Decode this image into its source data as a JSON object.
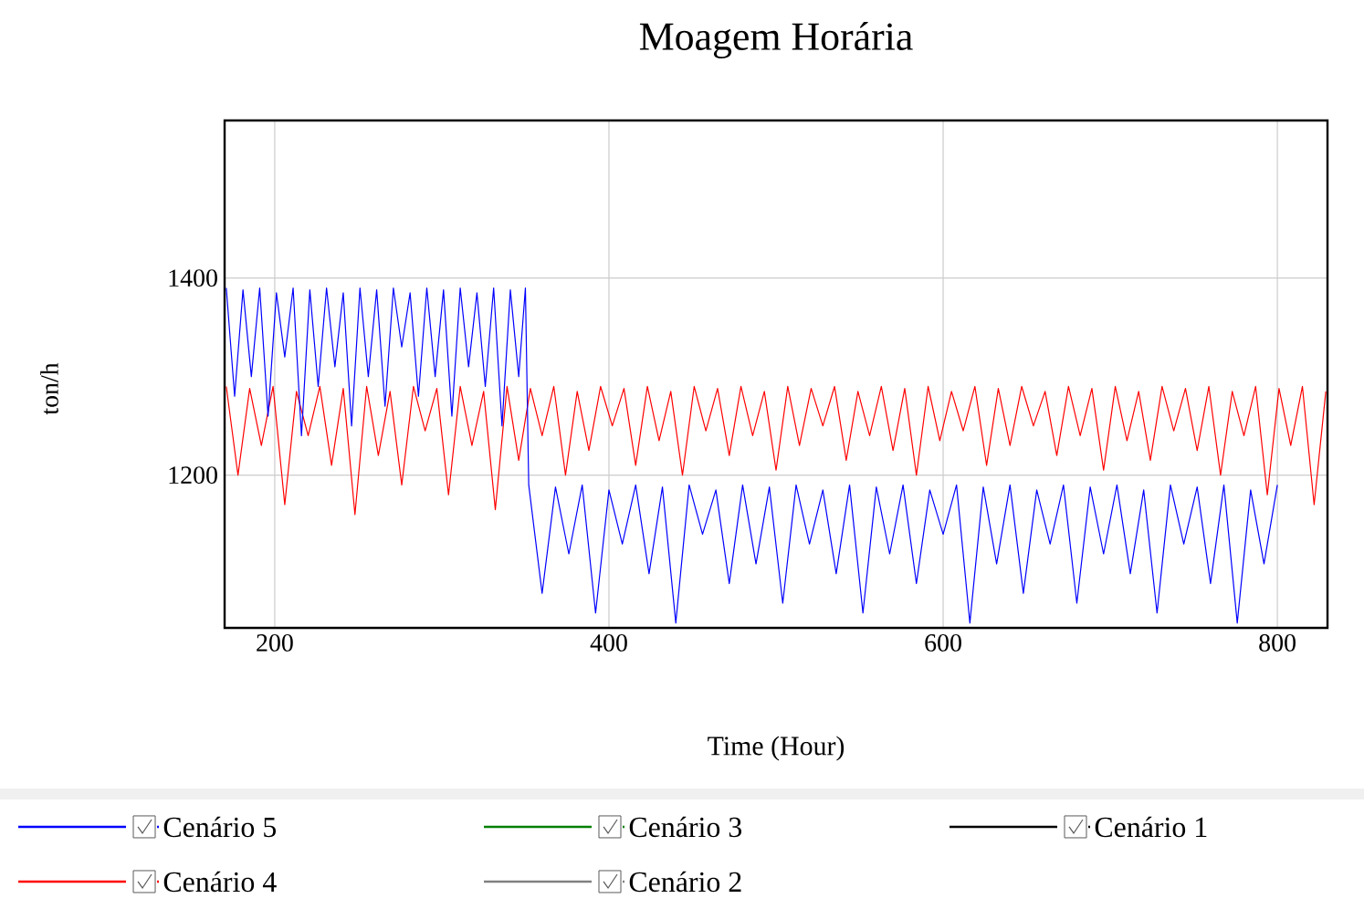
{
  "chart_data": {
    "type": "line",
    "title": "Moagem Horária",
    "xlabel": "Time (Hour)",
    "ylabel": "ton/h",
    "xlim": [
      170,
      830
    ],
    "xticks": [
      200,
      400,
      600,
      800
    ],
    "ylim": [
      1045,
      1560
    ],
    "yticks": [
      1200,
      1400
    ],
    "grid": true,
    "legend": "bottom",
    "line_style": "solid",
    "marker": "none",
    "series": [
      {
        "name": "Cenário 5",
        "color": "#0000ff",
        "x": [
          171,
          176,
          181,
          186,
          191,
          196,
          201,
          206,
          211,
          216,
          221,
          226,
          231,
          236,
          241,
          246,
          251,
          256,
          261,
          266,
          271,
          276,
          281,
          286,
          291,
          296,
          301,
          306,
          311,
          316,
          321,
          326,
          331,
          336,
          341,
          346,
          350,
          352,
          360,
          368,
          376,
          384,
          392,
          400,
          408,
          416,
          424,
          432,
          440,
          448,
          456,
          464,
          472,
          480,
          488,
          496,
          504,
          512,
          520,
          528,
          536,
          544,
          552,
          560,
          568,
          576,
          584,
          592,
          600,
          608,
          616,
          624,
          632,
          640,
          648,
          656,
          664,
          672,
          680,
          688,
          696,
          704,
          712,
          720,
          728,
          736,
          744,
          752,
          760,
          768,
          776,
          784,
          792,
          800
        ],
        "values": [
          1390,
          1280,
          1388,
          1300,
          1390,
          1260,
          1385,
          1320,
          1390,
          1240,
          1388,
          1290,
          1390,
          1310,
          1385,
          1250,
          1390,
          1300,
          1388,
          1270,
          1390,
          1330,
          1385,
          1280,
          1390,
          1300,
          1388,
          1260,
          1390,
          1310,
          1385,
          1290,
          1390,
          1250,
          1388,
          1300,
          1390,
          1190,
          1080,
          1188,
          1120,
          1190,
          1060,
          1185,
          1130,
          1190,
          1100,
          1188,
          1050,
          1190,
          1140,
          1185,
          1090,
          1190,
          1110,
          1188,
          1070,
          1190,
          1130,
          1185,
          1100,
          1190,
          1060,
          1188,
          1120,
          1190,
          1090,
          1185,
          1140,
          1190,
          1050,
          1188,
          1110,
          1190,
          1080,
          1185,
          1130,
          1190,
          1070,
          1188,
          1120,
          1190,
          1100,
          1185,
          1060,
          1190,
          1130,
          1188,
          1090,
          1190,
          1050,
          1185,
          1110,
          1190
        ]
      },
      {
        "name": "Cenário 3",
        "color": "#008000"
      },
      {
        "name": "Cenário 1",
        "color": "#000000"
      },
      {
        "name": "Cenário 4",
        "color": "#ff0000",
        "x": [
          171,
          178,
          185,
          192,
          199,
          206,
          213,
          220,
          227,
          234,
          241,
          248,
          255,
          262,
          269,
          276,
          283,
          290,
          297,
          304,
          311,
          318,
          325,
          332,
          339,
          346,
          353,
          360,
          367,
          374,
          381,
          388,
          395,
          402,
          409,
          416,
          423,
          430,
          437,
          444,
          451,
          458,
          465,
          472,
          479,
          486,
          493,
          500,
          507,
          514,
          521,
          528,
          535,
          542,
          549,
          556,
          563,
          570,
          577,
          584,
          591,
          598,
          605,
          612,
          619,
          626,
          633,
          640,
          647,
          654,
          661,
          668,
          675,
          682,
          689,
          696,
          703,
          710,
          717,
          724,
          731,
          738,
          745,
          752,
          759,
          766,
          773,
          780,
          787,
          794,
          801,
          808,
          815,
          822,
          829
        ],
        "values": [
          1290,
          1200,
          1288,
          1230,
          1290,
          1170,
          1285,
          1240,
          1290,
          1210,
          1288,
          1160,
          1290,
          1220,
          1285,
          1190,
          1290,
          1245,
          1288,
          1180,
          1290,
          1230,
          1285,
          1165,
          1290,
          1215,
          1288,
          1240,
          1290,
          1200,
          1285,
          1225,
          1290,
          1250,
          1288,
          1210,
          1290,
          1235,
          1285,
          1200,
          1290,
          1245,
          1288,
          1220,
          1290,
          1240,
          1285,
          1205,
          1290,
          1230,
          1288,
          1250,
          1290,
          1215,
          1285,
          1240,
          1290,
          1225,
          1288,
          1200,
          1290,
          1235,
          1285,
          1245,
          1290,
          1210,
          1288,
          1230,
          1290,
          1250,
          1285,
          1220,
          1290,
          1240,
          1288,
          1205,
          1290,
          1235,
          1285,
          1215,
          1290,
          1245,
          1288,
          1225,
          1290,
          1200,
          1285,
          1240,
          1290,
          1180,
          1288,
          1230,
          1290,
          1170,
          1285
        ]
      },
      {
        "name": "Cenário 2",
        "color": "#808080"
      }
    ]
  }
}
